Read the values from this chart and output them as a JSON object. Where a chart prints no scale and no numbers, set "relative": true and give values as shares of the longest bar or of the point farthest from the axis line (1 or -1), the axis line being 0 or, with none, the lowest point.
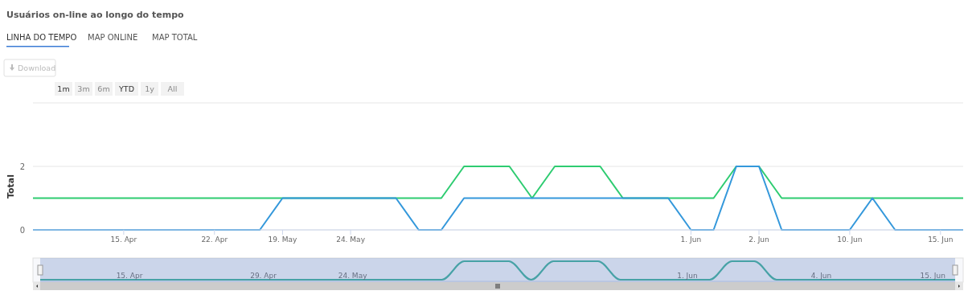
{
  "chart_data": [
    {
      "type": "line",
      "title": "Usuários on-line ao longo do tempo",
      "ylabel": "Total",
      "annotations": [
        "LINHA DO TEMPO",
        "MAP ONLINE",
        "MAP TOTAL",
        "Download",
        "1m",
        "3m",
        "6m",
        "YTD",
        "1y",
        "All"
      ],
      "categories": [
        null,
        null,
        null,
        null,
        "15. Apr",
        null,
        null,
        null,
        "22. Apr",
        null,
        null,
        "19. May",
        null,
        null,
        "24. May",
        null,
        null,
        null,
        null,
        null,
        null,
        null,
        null,
        null,
        null,
        null,
        null,
        null,
        null,
        "1. Jun",
        null,
        null,
        "2. Jun",
        null,
        null,
        null,
        "10. Jun",
        null,
        null,
        null,
        "15. Jun",
        null
      ],
      "series": [
        {
          "color": "#2ecc71",
          "values": [
            1,
            1,
            1,
            1,
            1,
            1,
            1,
            1,
            1,
            1,
            1,
            1,
            1,
            1,
            1,
            1,
            1,
            1,
            1,
            2,
            2,
            2,
            1,
            2,
            2,
            2,
            1,
            1,
            1,
            1,
            1,
            2,
            2,
            1,
            1,
            1,
            1,
            1,
            1,
            1,
            1,
            1
          ]
        },
        {
          "color": "#3498db",
          "values": [
            0,
            0,
            0,
            0,
            0,
            0,
            0,
            0,
            0,
            0,
            0,
            1,
            1,
            1,
            1,
            1,
            1,
            0,
            0,
            1,
            1,
            1,
            1,
            1,
            1,
            1,
            1,
            1,
            1,
            0,
            0,
            2,
            2,
            0,
            0,
            0,
            0,
            1,
            0,
            0,
            0,
            0
          ]
        }
      ],
      "ylim": [
        0,
        4
      ],
      "yticks": [
        0,
        2,
        {
          "value": 4,
          "label": null
        }
      ],
      "grid": "y"
    },
    {
      "type": "line",
      "relative": true,
      "categories": [
        null,
        null,
        null,
        null,
        "15. Apr",
        null,
        null,
        null,
        null,
        null,
        "29. Apr",
        null,
        null,
        null,
        "24. May",
        null,
        null,
        null,
        null,
        null,
        null,
        null,
        null,
        null,
        null,
        null,
        null,
        null,
        null,
        "1. Jun",
        null,
        null,
        null,
        null,
        null,
        "4. Jun",
        null,
        null,
        null,
        null,
        "15. Jun",
        null
      ],
      "series": [
        {
          "color": "#3aaf9a",
          "values": [
            0,
            0,
            0,
            0,
            0,
            0,
            0,
            0,
            0,
            0,
            0,
            0,
            0,
            0,
            0,
            0,
            0,
            0,
            0,
            1,
            1,
            1,
            0,
            1,
            1,
            1,
            0,
            0,
            0,
            0,
            0,
            1,
            1,
            0,
            0,
            0,
            0,
            0,
            0,
            0,
            0,
            0
          ]
        }
      ],
      "tick_labels": "x"
    }
  ]
}
